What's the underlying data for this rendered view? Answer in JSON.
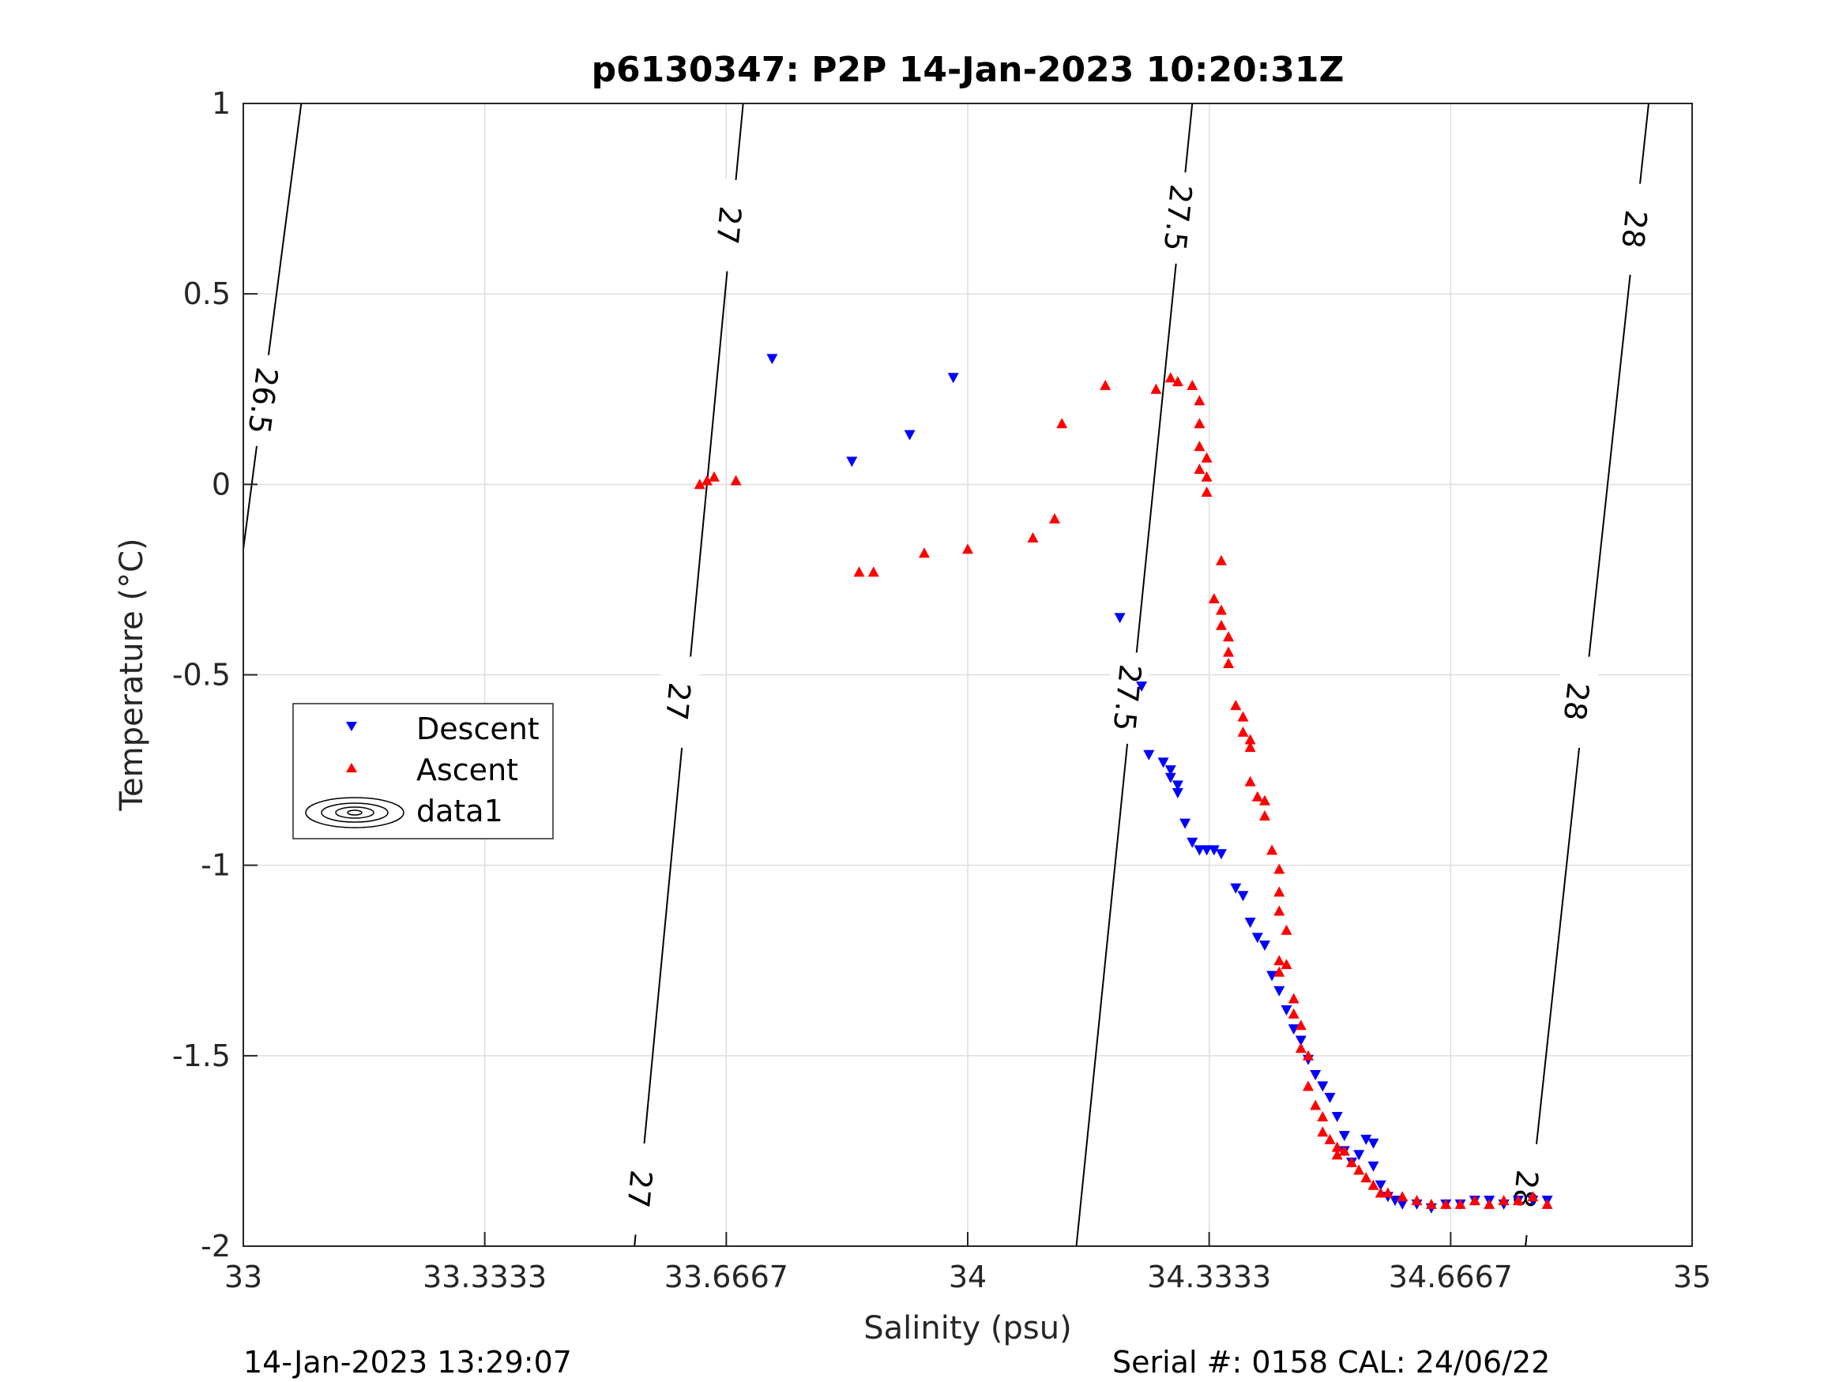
{
  "chart_data": {
    "type": "scatter",
    "title": "p6130347: P2P 14-Jan-2023 10:20:31Z",
    "xlabel": "Salinity (psu)",
    "ylabel": "Temperature (°C)",
    "xlim": [
      33,
      35
    ],
    "ylim": [
      -2,
      1
    ],
    "xticks": [
      33,
      33.3333,
      33.6667,
      34,
      34.3333,
      34.6667,
      35
    ],
    "xtick_labels": [
      "33",
      "33.3333",
      "33.6667",
      "34",
      "34.3333",
      "34.6667",
      "35"
    ],
    "yticks": [
      -2,
      -1.5,
      -1,
      -0.5,
      0,
      0.5,
      1
    ],
    "ytick_labels": [
      "-2",
      "-1.5",
      "-1",
      "-0.5",
      "0",
      "0.5",
      "1"
    ],
    "grid": true,
    "legend_position": "left",
    "footer_left": "14-Jan-2023 13:29:07",
    "footer_right": "Serial #: 0158  CAL: 24/06/22",
    "series": [
      {
        "name": "Descent",
        "marker": "triangle-down",
        "color": "#0000ff",
        "points": [
          [
            33.73,
            0.33
          ],
          [
            33.84,
            0.06
          ],
          [
            33.92,
            0.13
          ],
          [
            33.98,
            0.28
          ],
          [
            34.21,
            -0.35
          ],
          [
            34.24,
            -0.53
          ],
          [
            34.25,
            -0.71
          ],
          [
            34.27,
            -0.73
          ],
          [
            34.28,
            -0.75
          ],
          [
            34.28,
            -0.77
          ],
          [
            34.29,
            -0.79
          ],
          [
            34.29,
            -0.81
          ],
          [
            34.3,
            -0.89
          ],
          [
            34.31,
            -0.94
          ],
          [
            34.32,
            -0.96
          ],
          [
            34.33,
            -0.96
          ],
          [
            34.34,
            -0.96
          ],
          [
            34.35,
            -0.97
          ],
          [
            34.37,
            -1.06
          ],
          [
            34.38,
            -1.08
          ],
          [
            34.39,
            -1.15
          ],
          [
            34.4,
            -1.19
          ],
          [
            34.41,
            -1.21
          ],
          [
            34.42,
            -1.29
          ],
          [
            34.43,
            -1.33
          ],
          [
            34.44,
            -1.38
          ],
          [
            34.45,
            -1.43
          ],
          [
            34.46,
            -1.46
          ],
          [
            34.47,
            -1.51
          ],
          [
            34.48,
            -1.55
          ],
          [
            34.49,
            -1.58
          ],
          [
            34.5,
            -1.61
          ],
          [
            34.51,
            -1.66
          ],
          [
            34.52,
            -1.71
          ],
          [
            34.52,
            -1.75
          ],
          [
            34.53,
            -1.78
          ],
          [
            34.54,
            -1.76
          ],
          [
            34.55,
            -1.72
          ],
          [
            34.56,
            -1.73
          ],
          [
            34.56,
            -1.79
          ],
          [
            34.57,
            -1.84
          ],
          [
            34.58,
            -1.87
          ],
          [
            34.59,
            -1.88
          ],
          [
            34.6,
            -1.89
          ],
          [
            34.62,
            -1.89
          ],
          [
            34.64,
            -1.9
          ],
          [
            34.66,
            -1.89
          ],
          [
            34.68,
            -1.89
          ],
          [
            34.7,
            -1.88
          ],
          [
            34.72,
            -1.88
          ],
          [
            34.74,
            -1.89
          ],
          [
            34.76,
            -1.88
          ],
          [
            34.78,
            -1.88
          ],
          [
            34.8,
            -1.88
          ]
        ]
      },
      {
        "name": "Ascent",
        "marker": "triangle-up",
        "color": "#ff0000",
        "points": [
          [
            33.63,
            0.0
          ],
          [
            33.64,
            0.01
          ],
          [
            33.65,
            0.02
          ],
          [
            33.68,
            0.01
          ],
          [
            33.85,
            -0.23
          ],
          [
            33.87,
            -0.23
          ],
          [
            33.94,
            -0.18
          ],
          [
            34.0,
            -0.17
          ],
          [
            34.09,
            -0.14
          ],
          [
            34.12,
            -0.09
          ],
          [
            34.13,
            0.16
          ],
          [
            34.19,
            0.26
          ],
          [
            34.26,
            0.25
          ],
          [
            34.28,
            0.28
          ],
          [
            34.29,
            0.27
          ],
          [
            34.31,
            0.26
          ],
          [
            34.32,
            0.22
          ],
          [
            34.32,
            0.16
          ],
          [
            34.32,
            0.1
          ],
          [
            34.33,
            0.07
          ],
          [
            34.32,
            0.04
          ],
          [
            34.33,
            0.02
          ],
          [
            34.33,
            -0.02
          ],
          [
            34.35,
            -0.2
          ],
          [
            34.34,
            -0.3
          ],
          [
            34.35,
            -0.33
          ],
          [
            34.35,
            -0.37
          ],
          [
            34.36,
            -0.4
          ],
          [
            34.36,
            -0.44
          ],
          [
            34.36,
            -0.47
          ],
          [
            34.37,
            -0.58
          ],
          [
            34.38,
            -0.61
          ],
          [
            34.38,
            -0.65
          ],
          [
            34.39,
            -0.67
          ],
          [
            34.39,
            -0.69
          ],
          [
            34.39,
            -0.78
          ],
          [
            34.4,
            -0.82
          ],
          [
            34.41,
            -0.83
          ],
          [
            34.41,
            -0.87
          ],
          [
            34.42,
            -0.96
          ],
          [
            34.43,
            -1.01
          ],
          [
            34.43,
            -1.07
          ],
          [
            34.43,
            -1.12
          ],
          [
            34.44,
            -1.17
          ],
          [
            34.43,
            -1.25
          ],
          [
            34.44,
            -1.26
          ],
          [
            34.43,
            -1.28
          ],
          [
            34.45,
            -1.35
          ],
          [
            34.45,
            -1.39
          ],
          [
            34.46,
            -1.42
          ],
          [
            34.46,
            -1.48
          ],
          [
            34.47,
            -1.5
          ],
          [
            34.47,
            -1.58
          ],
          [
            34.48,
            -1.63
          ],
          [
            34.49,
            -1.66
          ],
          [
            34.49,
            -1.7
          ],
          [
            34.5,
            -1.72
          ],
          [
            34.51,
            -1.74
          ],
          [
            34.51,
            -1.76
          ],
          [
            34.52,
            -1.75
          ],
          [
            34.53,
            -1.78
          ],
          [
            34.54,
            -1.8
          ],
          [
            34.55,
            -1.82
          ],
          [
            34.56,
            -1.84
          ],
          [
            34.57,
            -1.86
          ],
          [
            34.58,
            -1.86
          ],
          [
            34.6,
            -1.87
          ],
          [
            34.62,
            -1.88
          ],
          [
            34.64,
            -1.89
          ],
          [
            34.66,
            -1.89
          ],
          [
            34.68,
            -1.89
          ],
          [
            34.7,
            -1.88
          ],
          [
            34.72,
            -1.89
          ],
          [
            34.74,
            -1.88
          ],
          [
            34.76,
            -1.88
          ],
          [
            34.78,
            -1.87
          ],
          [
            34.8,
            -1.89
          ]
        ]
      }
    ],
    "density_contours": [
      {
        "level": "26.5",
        "line": [
          [
            33.0,
            -0.17
          ],
          [
            33.08,
            1.0
          ]
        ],
        "labels": [
          [
            33.027,
            0.22
          ]
        ]
      },
      {
        "level": "27",
        "line": [
          [
            33.54,
            -2.0
          ],
          [
            33.69,
            1.0
          ]
        ],
        "labels": [
          [
            33.547,
            -1.85
          ],
          [
            33.6,
            -0.57
          ],
          [
            33.67,
            0.68
          ]
        ]
      },
      {
        "level": "27.5",
        "line": [
          [
            34.15,
            -2.0
          ],
          [
            34.31,
            1.0
          ]
        ],
        "labels": [
          [
            34.22,
            -0.56
          ],
          [
            34.29,
            0.7
          ]
        ]
      },
      {
        "level": "28",
        "line": [
          [
            34.77,
            -2.0
          ],
          [
            34.94,
            1.0
          ]
        ],
        "labels": [
          [
            34.77,
            -1.85
          ],
          [
            34.84,
            -0.57
          ],
          [
            34.92,
            0.67
          ]
        ]
      }
    ],
    "legend": {
      "entries": [
        "Descent",
        "Ascent",
        "data1"
      ]
    }
  }
}
